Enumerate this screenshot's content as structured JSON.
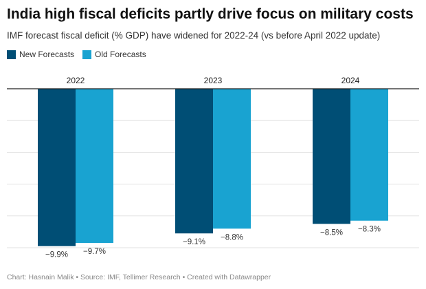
{
  "header": {
    "title": "India high fiscal deficits partly drive focus on military costs",
    "subtitle": "IMF forecast fiscal deficit (% GDP) have widened for 2022-24 (vs before April 2022 update)"
  },
  "footer": {
    "text": "Chart: Hasnain Malik • Source: IMF, Tellimer Research • Created with Datawrapper"
  },
  "colors": {
    "new": "#004e75",
    "old": "#19a3d1",
    "axis": "#222222",
    "grid": "#e2e2e2",
    "label": "#333333"
  },
  "chart_data": {
    "type": "bar",
    "categories": [
      "2022",
      "2023",
      "2024"
    ],
    "series": [
      {
        "name": "New Forecasts",
        "values": [
          -9.9,
          -9.1,
          -8.5
        ],
        "labels": [
          "−9.9%",
          "−9.1%",
          "−8.5%"
        ]
      },
      {
        "name": "Old Forecasts",
        "values": [
          -9.7,
          -8.8,
          -8.3
        ],
        "labels": [
          "−9.7%",
          "−8.8%",
          "−8.3%"
        ]
      }
    ],
    "ylim": [
      -10,
      0
    ],
    "grid": true,
    "legend": "top-left",
    "xaxis_position": "top"
  }
}
